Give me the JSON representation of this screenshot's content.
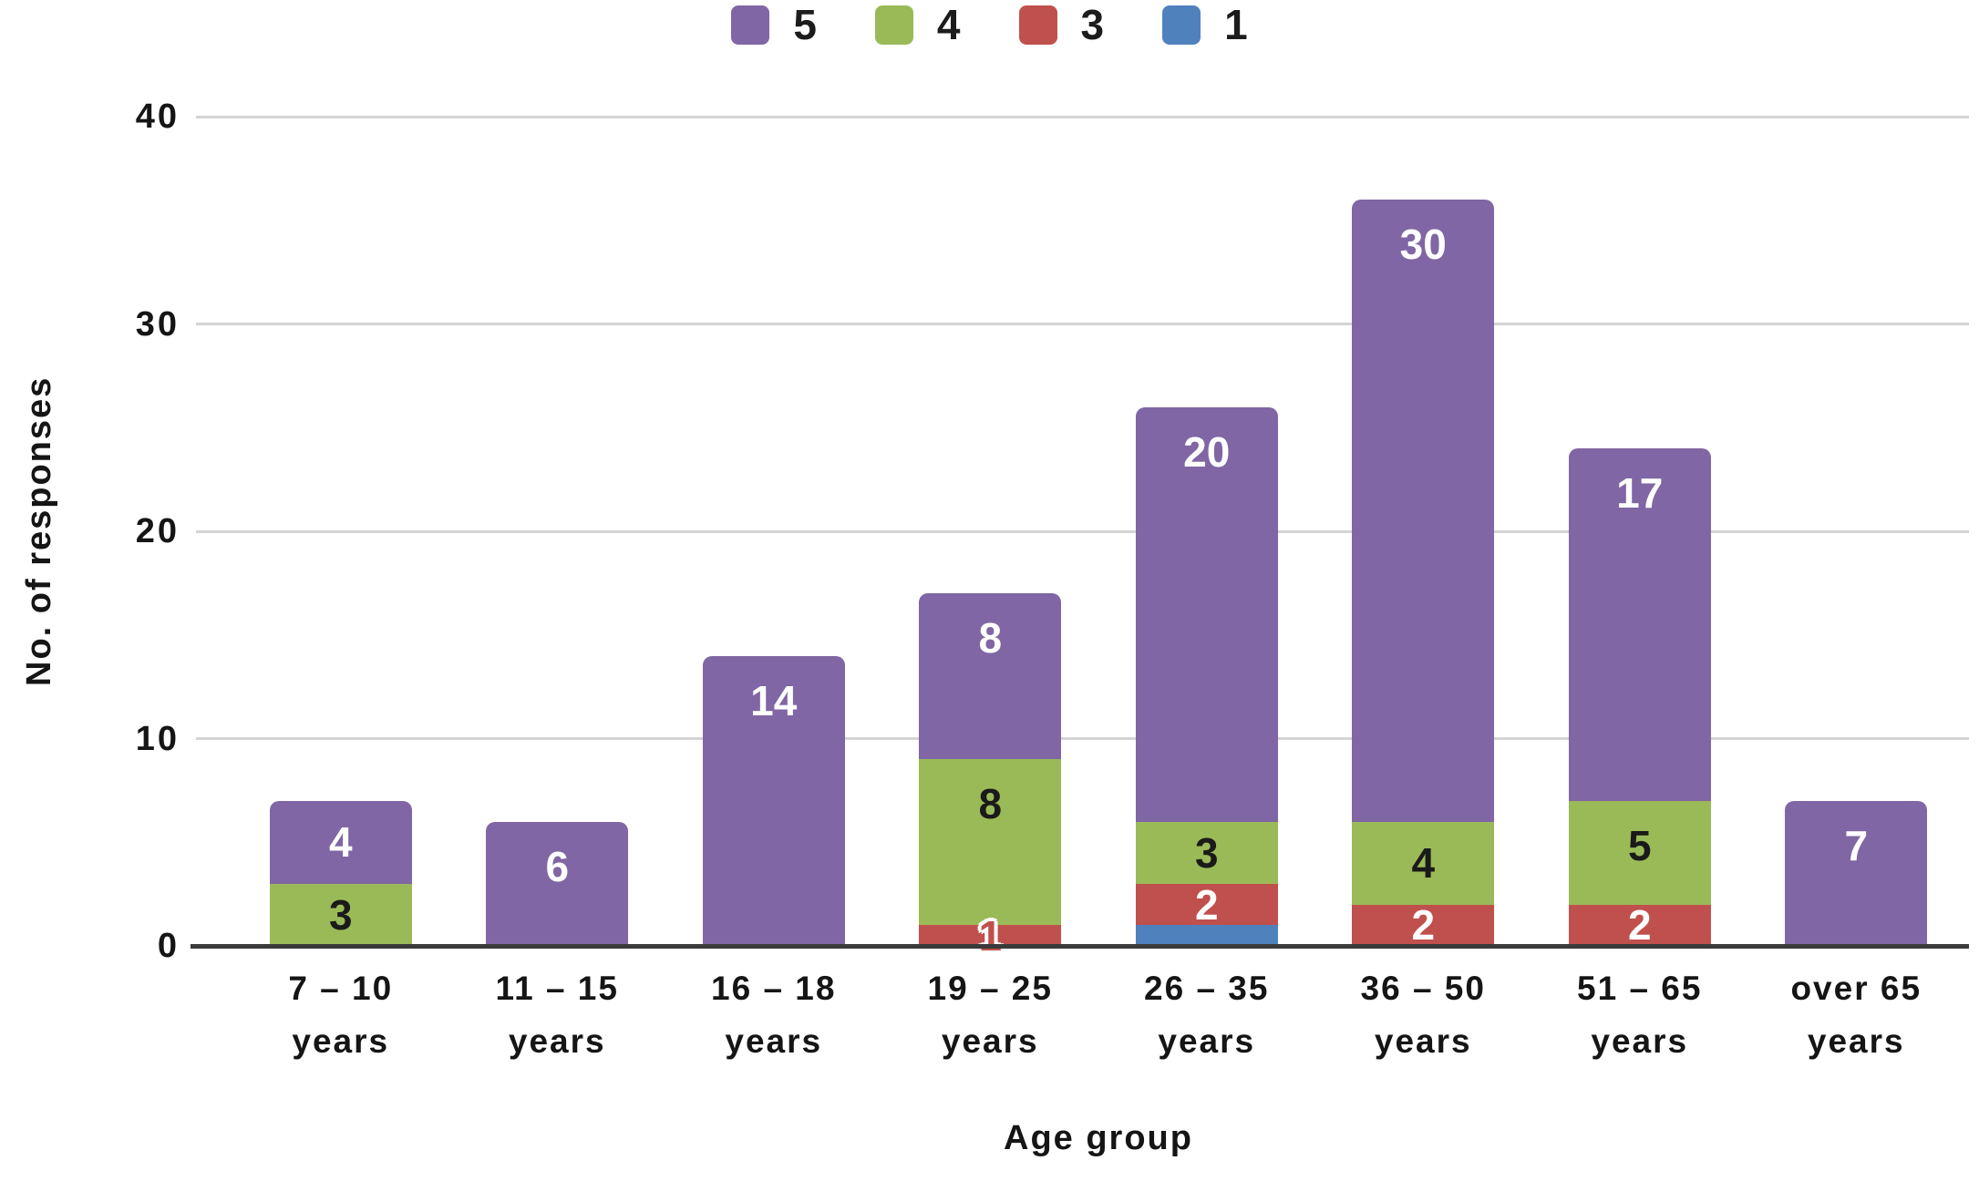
{
  "chart_data": {
    "type": "bar",
    "stacked": true,
    "title": "",
    "xlabel": "Age group",
    "ylabel": "No. of responses",
    "ylim": [
      0,
      40
    ],
    "y_ticks": [
      0,
      10,
      20,
      30,
      40
    ],
    "grid": {
      "show": true,
      "color": "#d4d4d4",
      "zero_line_color": "#3a3a3a"
    },
    "categories": [
      "7 – 10",
      "11 – 15",
      "16 – 18",
      "19 – 25",
      "26 – 35",
      "36 – 50",
      "51 – 65",
      "over 65"
    ],
    "category_suffix": "years",
    "series": [
      {
        "name": "1",
        "color": "#4f81bd",
        "label_color": "#ffffff",
        "values": [
          0,
          0,
          0,
          0,
          1,
          0,
          0,
          0
        ],
        "labels": [
          null,
          null,
          null,
          null,
          null,
          null,
          null,
          null
        ]
      },
      {
        "name": "3",
        "color": "#c0504d",
        "label_color": "#ffffff",
        "values": [
          0,
          0,
          0,
          1,
          2,
          2,
          2,
          0
        ],
        "labels": [
          null,
          null,
          null,
          "1",
          "2",
          "2",
          "2",
          null
        ]
      },
      {
        "name": "4",
        "color": "#9aba58",
        "label_color": "#1a1a1a",
        "values": [
          3,
          0,
          0,
          8,
          3,
          4,
          5,
          0
        ],
        "labels": [
          "3",
          null,
          null,
          "8",
          "3",
          "4",
          "5",
          null
        ]
      },
      {
        "name": "5",
        "color": "#8066a4",
        "label_color": "#ffffff",
        "values": [
          4,
          6,
          14,
          8,
          20,
          30,
          17,
          7
        ],
        "labels": [
          "4",
          "6",
          "14",
          "8",
          "20",
          "30",
          "17",
          "7"
        ]
      }
    ],
    "totals": [
      7,
      6,
      14,
      17,
      26,
      36,
      24,
      7
    ],
    "legend": {
      "position": "top",
      "items": [
        {
          "label": "5",
          "color": "#8066a4"
        },
        {
          "label": "4",
          "color": "#9aba58"
        },
        {
          "label": "3",
          "color": "#c0504d"
        },
        {
          "label": "1",
          "color": "#4f81bd"
        }
      ]
    }
  }
}
